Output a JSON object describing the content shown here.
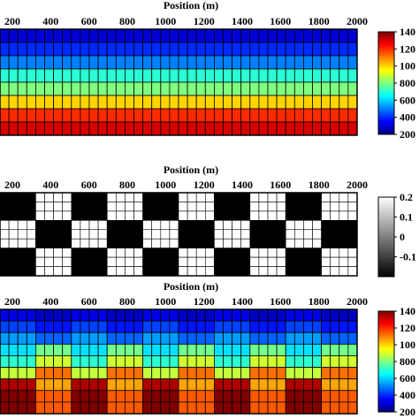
{
  "chart_data": [
    {
      "type": "heatmap",
      "name": "top-velocity-model",
      "xlabel": "Position (m)",
      "xticks": [
        200,
        400,
        600,
        800,
        1000,
        1200,
        1400,
        1600,
        1800,
        2000
      ],
      "xlim": [
        0,
        2000
      ],
      "columns": 40,
      "rows": 8,
      "row_values": [
        300,
        400,
        500,
        700,
        800,
        1000,
        1200,
        1300
      ],
      "colormap": "jet",
      "colorbar": {
        "range": [
          200,
          1400
        ],
        "ticks": [
          "140",
          "120",
          "100",
          "800",
          "600",
          "400",
          "200"
        ]
      }
    },
    {
      "type": "heatmap",
      "name": "middle-checkerboard",
      "xlabel": "Position (m)",
      "xticks": [
        200,
        400,
        600,
        800,
        1000,
        1200,
        1400,
        1600,
        1800,
        2000
      ],
      "xlim": [
        0,
        2000
      ],
      "columns": 40,
      "rows": 9,
      "checker_blocks_x": 10,
      "checker_blocks_y": 3,
      "checker_values": [
        -0.2,
        0.2
      ],
      "colormap": "gray",
      "colorbar": {
        "range": [
          -0.2,
          0.2
        ],
        "ticks": [
          "0.2",
          "0.1",
          "0",
          "-0.1"
        ]
      }
    },
    {
      "type": "heatmap",
      "name": "bottom-perturbed-model",
      "xlabel": "Position (m)",
      "xticks": [
        200,
        400,
        600,
        800,
        1000,
        1200,
        1400,
        1600,
        1800,
        2000
      ],
      "xlim": [
        0,
        2000
      ],
      "columns": 40,
      "rows": 9,
      "row_values": [
        300,
        400,
        500,
        700,
        800,
        1000,
        1200,
        1300,
        1300
      ],
      "perturbation_blocks_x": 10,
      "perturbation_blocks_y": 3,
      "perturbation_amplitude": 0.2,
      "colormap": "jet",
      "colorbar": {
        "range": [
          200,
          1400
        ],
        "ticks": [
          "140",
          "120",
          "100",
          "800",
          "600",
          "400",
          "200"
        ]
      }
    }
  ]
}
